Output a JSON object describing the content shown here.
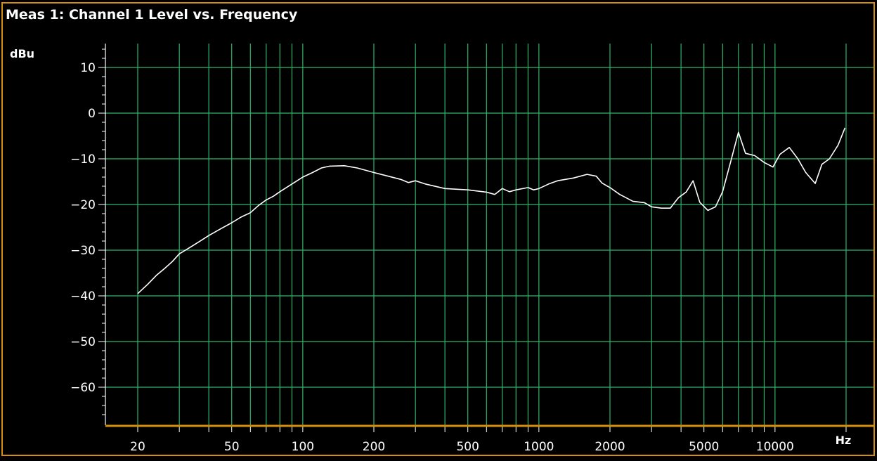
{
  "window": {
    "title": "Meas 1: Channel 1 Level vs. Frequency"
  },
  "colors": {
    "background": "#000000",
    "frame": "#d4900a",
    "grid": "#2fb56a",
    "trace": "#ffffff",
    "text": "#ffffff"
  },
  "chart_data": {
    "type": "line",
    "title": "Meas 1: Channel 1 Level vs. Frequency",
    "ylabel": "dBu",
    "xlabel": "Hz",
    "xscale": "log",
    "xlim": [
      20,
      20000
    ],
    "ylim": [
      -67,
      15
    ],
    "grid": true,
    "x_tick_labels": [
      20,
      50,
      100,
      200,
      500,
      1000,
      2000,
      5000,
      10000
    ],
    "y_tick_labels": [
      10,
      0,
      -10,
      -20,
      -30,
      -40,
      -50,
      -60
    ],
    "series": [
      {
        "color": "#ffffff",
        "points": [
          [
            20,
            -39.5
          ],
          [
            22,
            -37.5
          ],
          [
            24,
            -35.5
          ],
          [
            26,
            -34
          ],
          [
            28,
            -32.5
          ],
          [
            30,
            -30.8
          ],
          [
            33,
            -29.5
          ],
          [
            36,
            -28.3
          ],
          [
            40,
            -26.8
          ],
          [
            45,
            -25.3
          ],
          [
            50,
            -24
          ],
          [
            55,
            -22.7
          ],
          [
            60,
            -21.8
          ],
          [
            65,
            -20.2
          ],
          [
            70,
            -19
          ],
          [
            75,
            -18.2
          ],
          [
            80,
            -17.2
          ],
          [
            90,
            -15.5
          ],
          [
            100,
            -14
          ],
          [
            110,
            -13
          ],
          [
            120,
            -12
          ],
          [
            130,
            -11.6
          ],
          [
            150,
            -11.5
          ],
          [
            170,
            -12
          ],
          [
            200,
            -13
          ],
          [
            230,
            -13.8
          ],
          [
            260,
            -14.5
          ],
          [
            280,
            -15.2
          ],
          [
            300,
            -14.8
          ],
          [
            330,
            -15.5
          ],
          [
            400,
            -16.5
          ],
          [
            500,
            -16.8
          ],
          [
            600,
            -17.3
          ],
          [
            650,
            -17.8
          ],
          [
            700,
            -16.5
          ],
          [
            750,
            -17.2
          ],
          [
            800,
            -16.8
          ],
          [
            900,
            -16.3
          ],
          [
            950,
            -16.8
          ],
          [
            1000,
            -16.5
          ],
          [
            1100,
            -15.5
          ],
          [
            1200,
            -14.8
          ],
          [
            1400,
            -14.2
          ],
          [
            1600,
            -13.4
          ],
          [
            1750,
            -13.8
          ],
          [
            1850,
            -15.3
          ],
          [
            2000,
            -16.3
          ],
          [
            2200,
            -17.8
          ],
          [
            2500,
            -19.3
          ],
          [
            2800,
            -19.6
          ],
          [
            3000,
            -20.5
          ],
          [
            3300,
            -20.8
          ],
          [
            3600,
            -20.8
          ],
          [
            3900,
            -18.5
          ],
          [
            4200,
            -17.3
          ],
          [
            4500,
            -14.8
          ],
          [
            4800,
            -19.5
          ],
          [
            5200,
            -21.3
          ],
          [
            5600,
            -20.5
          ],
          [
            6000,
            -17.2
          ],
          [
            6500,
            -10.5
          ],
          [
            7000,
            -4.2
          ],
          [
            7500,
            -8.8
          ],
          [
            8200,
            -9.3
          ],
          [
            9000,
            -10.8
          ],
          [
            9800,
            -11.8
          ],
          [
            10500,
            -9
          ],
          [
            11500,
            -7.5
          ],
          [
            12500,
            -10
          ],
          [
            13500,
            -13
          ],
          [
            14800,
            -15.4
          ],
          [
            15800,
            -11.2
          ],
          [
            17000,
            -10
          ],
          [
            18500,
            -7
          ],
          [
            19800,
            -3.2
          ]
        ]
      }
    ]
  }
}
